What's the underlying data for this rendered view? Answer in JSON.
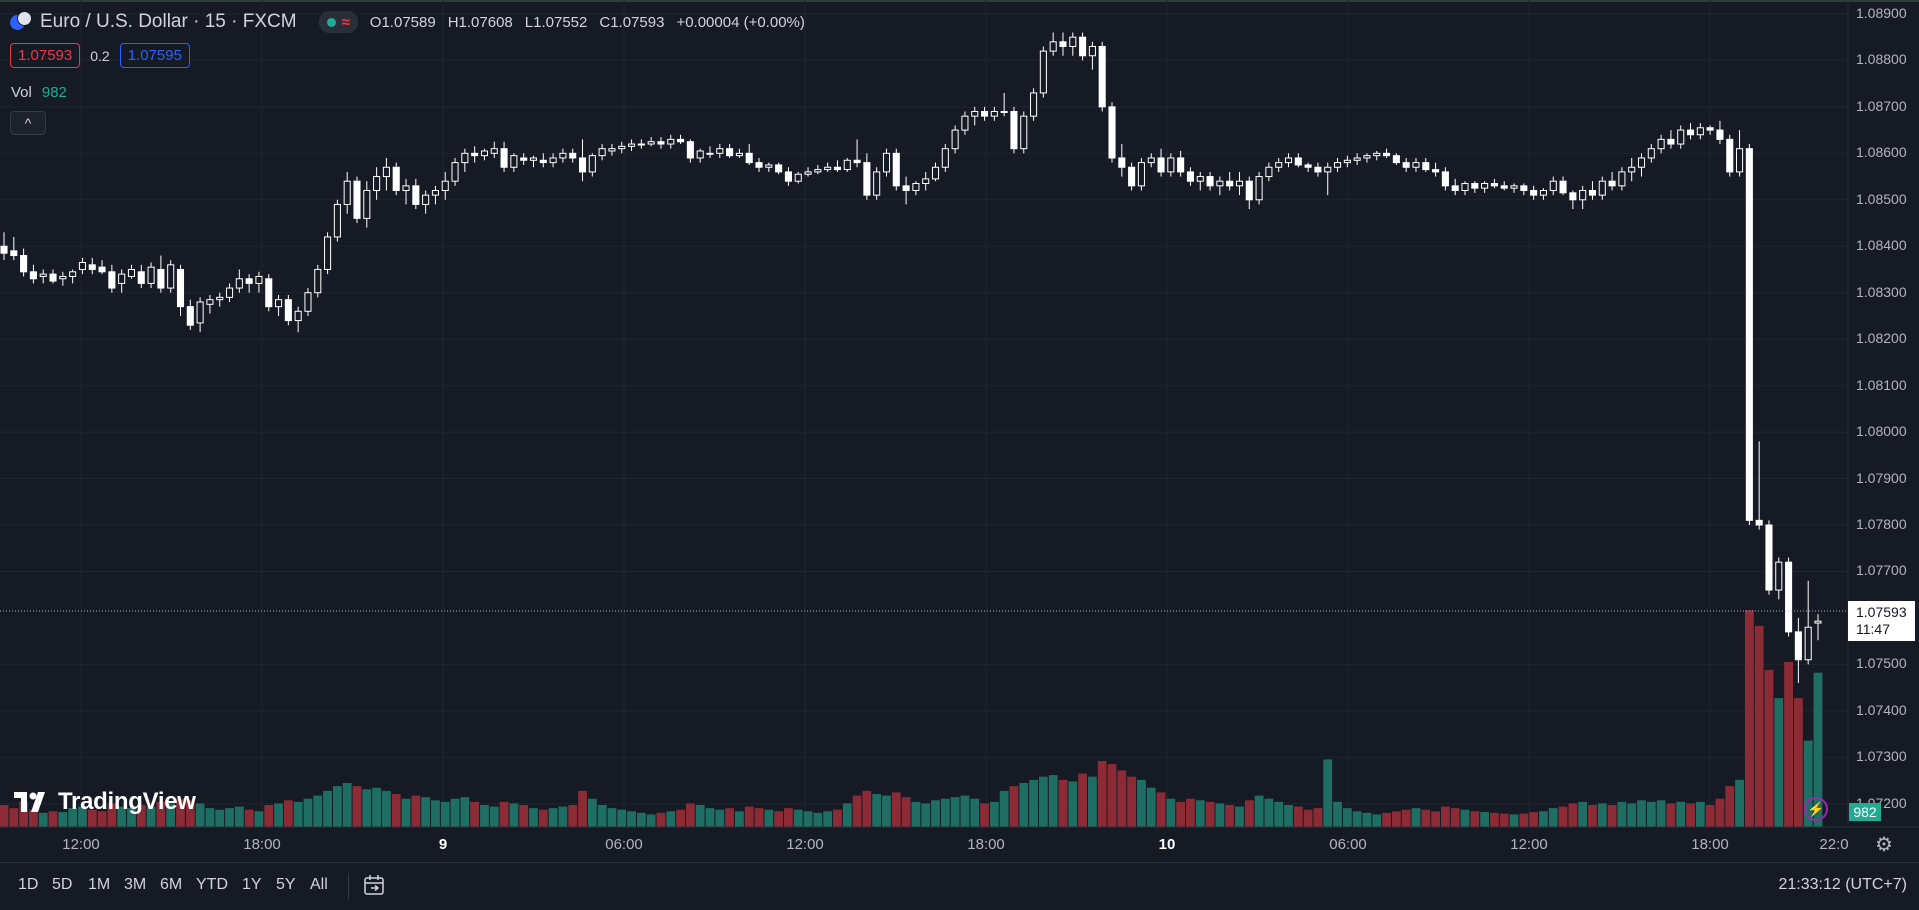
{
  "header": {
    "symbol_title": "Euro / U.S. Dollar · 15 · FXCM",
    "ohlc": {
      "o_label": "O",
      "o": "1.07589",
      "h_label": "H",
      "h": "1.07608",
      "l_label": "L",
      "l": "1.07552",
      "c_label": "C",
      "c": "1.07593",
      "change": "+0.00004 (+0.00%)"
    },
    "status_wave": "≈",
    "sell_price": "1.07593",
    "spread": "0.2",
    "buy_price": "1.07595",
    "vol_label": "Vol",
    "vol_value": "982",
    "collapse_icon": "^"
  },
  "price_axis": {
    "ticks": [
      "1.08900",
      "1.08800",
      "1.08700",
      "1.08600",
      "1.08500",
      "1.08400",
      "1.08300",
      "1.08200",
      "1.08100",
      "1.08000",
      "1.07900",
      "1.07800",
      "1.07700",
      "1.07500",
      "1.07400",
      "1.07300",
      "1.07200"
    ],
    "last_price": "1.07593",
    "countdown": "11:47",
    "volume_tag": "982"
  },
  "time_axis": {
    "labels": [
      {
        "text": "12:00",
        "major": false
      },
      {
        "text": "18:00",
        "major": false
      },
      {
        "text": "9",
        "major": true
      },
      {
        "text": "06:00",
        "major": false
      },
      {
        "text": "12:00",
        "major": false
      },
      {
        "text": "18:00",
        "major": false
      },
      {
        "text": "10",
        "major": true
      },
      {
        "text": "06:00",
        "major": false
      },
      {
        "text": "12:00",
        "major": false
      },
      {
        "text": "18:00",
        "major": false
      },
      {
        "text": "22:0",
        "major": false
      }
    ]
  },
  "bottom_bar": {
    "ranges": [
      "1D",
      "5D",
      "1M",
      "3M",
      "6M",
      "YTD",
      "1Y",
      "5Y",
      "All"
    ],
    "clock": "21:33:12 (UTC+7)"
  },
  "branding": {
    "logo_text": "TradingView"
  },
  "colors": {
    "background": "#161a25",
    "up": "#22ab94",
    "down": "#f23645",
    "candle": "#ffffff",
    "grid": "#1f2430"
  },
  "chart_data": {
    "type": "candlestick",
    "interval": "15",
    "ylim": [
      1.0715,
      1.0893
    ],
    "bars": [
      [
        1.084,
        1.0843,
        1.0837,
        1.08385,
        140
      ],
      [
        1.0839,
        1.0842,
        1.0837,
        1.0838,
        120
      ],
      [
        1.0838,
        1.08395,
        1.08335,
        1.08345,
        160
      ],
      [
        1.08345,
        1.0836,
        1.0832,
        1.0833,
        110
      ],
      [
        1.08335,
        1.0835,
        1.0832,
        1.0834,
        90
      ],
      [
        1.0834,
        1.0835,
        1.0832,
        1.08325,
        100
      ],
      [
        1.0833,
        1.08345,
        1.08315,
        1.08335,
        95
      ],
      [
        1.08335,
        1.0835,
        1.0832,
        1.08345,
        120
      ],
      [
        1.0835,
        1.08375,
        1.0834,
        1.08365,
        130
      ],
      [
        1.0836,
        1.08375,
        1.0834,
        1.0835,
        110
      ],
      [
        1.08355,
        1.0837,
        1.0834,
        1.08345,
        100
      ],
      [
        1.08345,
        1.0836,
        1.083,
        1.0831,
        150
      ],
      [
        1.0832,
        1.0835,
        1.083,
        1.0834,
        130
      ],
      [
        1.08335,
        1.0836,
        1.0833,
        1.0835,
        120
      ],
      [
        1.08345,
        1.0836,
        1.0831,
        1.0832,
        140
      ],
      [
        1.0832,
        1.08365,
        1.0831,
        1.08355,
        130
      ],
      [
        1.0835,
        1.0838,
        1.083,
        1.0831,
        160
      ],
      [
        1.0831,
        1.0837,
        1.083,
        1.0836,
        150
      ],
      [
        1.0835,
        1.0836,
        1.0825,
        1.0827,
        180
      ],
      [
        1.0827,
        1.08285,
        1.0822,
        1.0823,
        170
      ],
      [
        1.08235,
        1.0829,
        1.08215,
        1.0828,
        150
      ],
      [
        1.08275,
        1.08295,
        1.08255,
        1.08285,
        120
      ],
      [
        1.08285,
        1.083,
        1.0827,
        1.0829,
        110
      ],
      [
        1.0829,
        1.0832,
        1.0828,
        1.0831,
        120
      ],
      [
        1.0831,
        1.0835,
        1.083,
        1.0833,
        130
      ],
      [
        1.0833,
        1.0834,
        1.083,
        1.0832,
        110
      ],
      [
        1.0832,
        1.08345,
        1.083,
        1.08335,
        100
      ],
      [
        1.0833,
        1.0834,
        1.0826,
        1.0827,
        140
      ],
      [
        1.0827,
        1.08295,
        1.0825,
        1.08285,
        150
      ],
      [
        1.08285,
        1.08295,
        1.0823,
        1.0824,
        170
      ],
      [
        1.0824,
        1.0827,
        1.08215,
        1.0826,
        160
      ],
      [
        1.0826,
        1.0831,
        1.0825,
        1.083,
        180
      ],
      [
        1.083,
        1.0836,
        1.0829,
        1.0835,
        200
      ],
      [
        1.0835,
        1.0843,
        1.0834,
        1.0842,
        230
      ],
      [
        1.0842,
        1.085,
        1.0841,
        1.0849,
        260
      ],
      [
        1.0849,
        1.0856,
        1.0847,
        1.0854,
        280
      ],
      [
        1.0854,
        1.0855,
        1.0845,
        1.0846,
        260
      ],
      [
        1.0846,
        1.0854,
        1.0844,
        1.0852,
        240
      ],
      [
        1.0852,
        1.0857,
        1.085,
        1.0855,
        250
      ],
      [
        1.0855,
        1.0859,
        1.0852,
        1.0857,
        230
      ],
      [
        1.0857,
        1.0858,
        1.0851,
        1.0852,
        210
      ],
      [
        1.0852,
        1.08545,
        1.0849,
        1.0853,
        180
      ],
      [
        1.0853,
        1.08545,
        1.0848,
        1.0849,
        200
      ],
      [
        1.0849,
        1.0852,
        1.0847,
        1.0851,
        190
      ],
      [
        1.0851,
        1.0853,
        1.0849,
        1.0852,
        170
      ],
      [
        1.0852,
        1.0856,
        1.085,
        1.0854,
        160
      ],
      [
        1.0854,
        1.0859,
        1.0853,
        1.0858,
        180
      ],
      [
        1.0858,
        1.0861,
        1.0856,
        1.086,
        190
      ],
      [
        1.086,
        1.08615,
        1.0858,
        1.08595,
        160
      ],
      [
        1.08595,
        1.0861,
        1.08585,
        1.08605,
        140
      ],
      [
        1.086,
        1.08625,
        1.0859,
        1.0861,
        130
      ],
      [
        1.0861,
        1.08625,
        1.0856,
        1.0857,
        160
      ],
      [
        1.0857,
        1.086,
        1.0856,
        1.08595,
        150
      ],
      [
        1.0859,
        1.086,
        1.08575,
        1.08585,
        140
      ],
      [
        1.08585,
        1.08595,
        1.0857,
        1.0859,
        120
      ],
      [
        1.08585,
        1.086,
        1.0857,
        1.0858,
        110
      ],
      [
        1.0858,
        1.086,
        1.0857,
        1.0859,
        120
      ],
      [
        1.0859,
        1.0861,
        1.0858,
        1.086,
        130
      ],
      [
        1.086,
        1.0861,
        1.0858,
        1.0859,
        140
      ],
      [
        1.0859,
        1.0863,
        1.0854,
        1.0856,
        230
      ],
      [
        1.0856,
        1.086,
        1.0855,
        1.08595,
        180
      ],
      [
        1.08595,
        1.0862,
        1.08585,
        1.0861,
        140
      ],
      [
        1.08605,
        1.0862,
        1.08595,
        1.0861,
        120
      ],
      [
        1.0861,
        1.08625,
        1.086,
        1.08615,
        110
      ],
      [
        1.08615,
        1.0863,
        1.08605,
        1.0862,
        100
      ],
      [
        1.0862,
        1.0863,
        1.0861,
        1.0862,
        90
      ],
      [
        1.0862,
        1.08635,
        1.08615,
        1.08625,
        80
      ],
      [
        1.08625,
        1.08635,
        1.0861,
        1.0862,
        90
      ],
      [
        1.0862,
        1.0864,
        1.0861,
        1.0863,
        100
      ],
      [
        1.0863,
        1.0864,
        1.0862,
        1.08625,
        110
      ],
      [
        1.08625,
        1.0863,
        1.0858,
        1.0859,
        150
      ],
      [
        1.0859,
        1.0861,
        1.0858,
        1.08605,
        140
      ],
      [
        1.086,
        1.08615,
        1.0859,
        1.086,
        120
      ],
      [
        1.086,
        1.0862,
        1.0859,
        1.0861,
        110
      ],
      [
        1.0861,
        1.0862,
        1.0859,
        1.08595,
        120
      ],
      [
        1.08595,
        1.0861,
        1.0859,
        1.086,
        100
      ],
      [
        1.086,
        1.0862,
        1.08575,
        1.0858,
        130
      ],
      [
        1.0858,
        1.0859,
        1.0856,
        1.0857,
        120
      ],
      [
        1.0857,
        1.0858,
        1.0856,
        1.08575,
        110
      ],
      [
        1.08575,
        1.0858,
        1.08555,
        1.0856,
        100
      ],
      [
        1.0856,
        1.0857,
        1.0853,
        1.0854,
        120
      ],
      [
        1.0854,
        1.0856,
        1.08535,
        1.08555,
        110
      ],
      [
        1.08555,
        1.0857,
        1.0855,
        1.0856,
        100
      ],
      [
        1.0856,
        1.08575,
        1.08555,
        1.08565,
        90
      ],
      [
        1.08565,
        1.0858,
        1.0856,
        1.0857,
        100
      ],
      [
        1.0857,
        1.08585,
        1.0856,
        1.08565,
        110
      ],
      [
        1.08565,
        1.0859,
        1.0856,
        1.08585,
        150
      ],
      [
        1.08585,
        1.0863,
        1.0857,
        1.0858,
        200
      ],
      [
        1.0858,
        1.086,
        1.085,
        1.0851,
        230
      ],
      [
        1.0851,
        1.0857,
        1.085,
        1.0856,
        210
      ],
      [
        1.0856,
        1.0861,
        1.0855,
        1.086,
        200
      ],
      [
        1.086,
        1.0861,
        1.0852,
        1.0853,
        220
      ],
      [
        1.0853,
        1.0855,
        1.0849,
        1.0852,
        190
      ],
      [
        1.0852,
        1.0854,
        1.0851,
        1.08535,
        160
      ],
      [
        1.08535,
        1.0856,
        1.0852,
        1.08545,
        150
      ],
      [
        1.08545,
        1.0858,
        1.0854,
        1.0857,
        170
      ],
      [
        1.0857,
        1.0862,
        1.0856,
        1.0861,
        180
      ],
      [
        1.0861,
        1.0866,
        1.086,
        1.0865,
        190
      ],
      [
        1.0865,
        1.0869,
        1.0864,
        1.0868,
        200
      ],
      [
        1.0868,
        1.087,
        1.0866,
        1.0869,
        180
      ],
      [
        1.0869,
        1.087,
        1.0867,
        1.0868,
        150
      ],
      [
        1.0868,
        1.087,
        1.0867,
        1.0869,
        160
      ],
      [
        1.0869,
        1.0873,
        1.0868,
        1.0869,
        230
      ],
      [
        1.0869,
        1.087,
        1.086,
        1.0861,
        260
      ],
      [
        1.0861,
        1.0869,
        1.086,
        1.0868,
        280
      ],
      [
        1.0868,
        1.0874,
        1.0867,
        1.0873,
        300
      ],
      [
        1.0873,
        1.0883,
        1.0872,
        1.0882,
        320
      ],
      [
        1.0882,
        1.0886,
        1.0881,
        1.0884,
        330
      ],
      [
        1.0884,
        1.0886,
        1.0881,
        1.0883,
        300
      ],
      [
        1.0883,
        1.0886,
        1.0881,
        1.0885,
        290
      ],
      [
        1.0885,
        1.0886,
        1.088,
        1.0881,
        340
      ],
      [
        1.0881,
        1.0884,
        1.0878,
        1.0883,
        320
      ],
      [
        1.0883,
        1.0884,
        1.0869,
        1.087,
        420
      ],
      [
        1.087,
        1.0871,
        1.0858,
        1.0859,
        400
      ],
      [
        1.0859,
        1.0862,
        1.0855,
        1.0857,
        360
      ],
      [
        1.0857,
        1.0858,
        1.0852,
        1.0853,
        320
      ],
      [
        1.0853,
        1.0859,
        1.0852,
        1.0858,
        300
      ],
      [
        1.0858,
        1.086,
        1.0857,
        1.0859,
        250
      ],
      [
        1.0859,
        1.0861,
        1.0855,
        1.0856,
        220
      ],
      [
        1.0856,
        1.086,
        1.0855,
        1.0859,
        180
      ],
      [
        1.0859,
        1.08605,
        1.0855,
        1.0856,
        160
      ],
      [
        1.0856,
        1.0857,
        1.0853,
        1.0854,
        180
      ],
      [
        1.0854,
        1.0856,
        1.0852,
        1.0855,
        170
      ],
      [
        1.0855,
        1.0856,
        1.0852,
        1.0853,
        160
      ],
      [
        1.0853,
        1.0855,
        1.0851,
        1.0854,
        150
      ],
      [
        1.0854,
        1.0856,
        1.0852,
        1.0853,
        140
      ],
      [
        1.0853,
        1.0856,
        1.0851,
        1.0854,
        130
      ],
      [
        1.0854,
        1.0855,
        1.0848,
        1.085,
        170
      ],
      [
        1.085,
        1.0856,
        1.0849,
        1.0855,
        200
      ],
      [
        1.0855,
        1.0858,
        1.0854,
        1.0857,
        180
      ],
      [
        1.0857,
        1.0859,
        1.0856,
        1.0858,
        160
      ],
      [
        1.0858,
        1.086,
        1.0857,
        1.0859,
        140
      ],
      [
        1.0859,
        1.086,
        1.0857,
        1.08575,
        130
      ],
      [
        1.08575,
        1.0858,
        1.0856,
        1.0857,
        110
      ],
      [
        1.0857,
        1.0858,
        1.0855,
        1.0856,
        120
      ],
      [
        1.0856,
        1.0858,
        1.0851,
        1.0857,
        430
      ],
      [
        1.0857,
        1.0859,
        1.0856,
        1.0858,
        160
      ],
      [
        1.0858,
        1.08595,
        1.0857,
        1.08585,
        120
      ],
      [
        1.08585,
        1.086,
        1.08575,
        1.0859,
        100
      ],
      [
        1.0859,
        1.086,
        1.0858,
        1.08595,
        90
      ],
      [
        1.08595,
        1.08605,
        1.08585,
        1.086,
        80
      ],
      [
        1.086,
        1.0861,
        1.0859,
        1.08595,
        90
      ],
      [
        1.08595,
        1.086,
        1.08575,
        1.0858,
        100
      ],
      [
        1.0858,
        1.0859,
        1.0856,
        1.0857,
        110
      ],
      [
        1.0857,
        1.0859,
        1.0856,
        1.0858,
        120
      ],
      [
        1.0858,
        1.0859,
        1.0856,
        1.08565,
        110
      ],
      [
        1.08565,
        1.0858,
        1.0855,
        1.0856,
        100
      ],
      [
        1.0856,
        1.0857,
        1.0852,
        1.0853,
        130
      ],
      [
        1.0853,
        1.08545,
        1.0851,
        1.0852,
        120
      ],
      [
        1.0852,
        1.0854,
        1.0851,
        1.08535,
        110
      ],
      [
        1.08535,
        1.0854,
        1.08515,
        1.08525,
        100
      ],
      [
        1.08525,
        1.0854,
        1.08515,
        1.08535,
        95
      ],
      [
        1.08535,
        1.08545,
        1.08525,
        1.0853,
        90
      ],
      [
        1.0853,
        1.0854,
        1.0852,
        1.08525,
        85
      ],
      [
        1.08525,
        1.08535,
        1.08515,
        1.0853,
        80
      ],
      [
        1.0853,
        1.08535,
        1.0851,
        1.0852,
        85
      ],
      [
        1.0852,
        1.0853,
        1.085,
        1.0851,
        95
      ],
      [
        1.0851,
        1.08525,
        1.085,
        1.0852,
        100
      ],
      [
        1.0852,
        1.0855,
        1.0851,
        1.0854,
        120
      ],
      [
        1.0854,
        1.0855,
        1.0851,
        1.08515,
        130
      ],
      [
        1.08515,
        1.0852,
        1.0848,
        1.085,
        150
      ],
      [
        1.085,
        1.0853,
        1.0848,
        1.0852,
        160
      ],
      [
        1.0852,
        1.0854,
        1.085,
        1.0851,
        140
      ],
      [
        1.0851,
        1.0855,
        1.085,
        1.0854,
        150
      ],
      [
        1.0854,
        1.0856,
        1.0852,
        1.0853,
        140
      ],
      [
        1.0853,
        1.0857,
        1.0852,
        1.0856,
        160
      ],
      [
        1.0856,
        1.0859,
        1.0854,
        1.0857,
        150
      ],
      [
        1.0857,
        1.086,
        1.0855,
        1.0859,
        170
      ],
      [
        1.0859,
        1.0862,
        1.0858,
        1.0861,
        160
      ],
      [
        1.0861,
        1.0864,
        1.086,
        1.0863,
        170
      ],
      [
        1.0863,
        1.0865,
        1.0861,
        1.0862,
        150
      ],
      [
        1.0862,
        1.0866,
        1.0861,
        1.0865,
        160
      ],
      [
        1.0865,
        1.08665,
        1.0863,
        1.0864,
        150
      ],
      [
        1.0864,
        1.08665,
        1.0863,
        1.08655,
        160
      ],
      [
        1.08655,
        1.0866,
        1.0864,
        1.0865,
        140
      ],
      [
        1.0865,
        1.0867,
        1.0862,
        1.0863,
        180
      ],
      [
        1.0863,
        1.0864,
        1.0855,
        1.0856,
        260
      ],
      [
        1.0856,
        1.0865,
        1.0855,
        1.0861,
        300
      ],
      [
        1.0861,
        1.0862,
        1.078,
        1.0781,
        1380
      ],
      [
        1.0781,
        1.0798,
        1.0779,
        1.078,
        1280
      ],
      [
        1.078,
        1.0781,
        1.0765,
        1.0766,
        1000
      ],
      [
        1.0766,
        1.0773,
        1.0764,
        1.0772,
        820
      ],
      [
        1.0772,
        1.0773,
        1.0756,
        1.0757,
        1050
      ],
      [
        1.0757,
        1.076,
        1.0746,
        1.0751,
        820
      ],
      [
        1.0751,
        1.0768,
        1.075,
        1.0758,
        550
      ],
      [
        1.07589,
        1.07608,
        1.07552,
        1.07593,
        982
      ]
    ]
  }
}
